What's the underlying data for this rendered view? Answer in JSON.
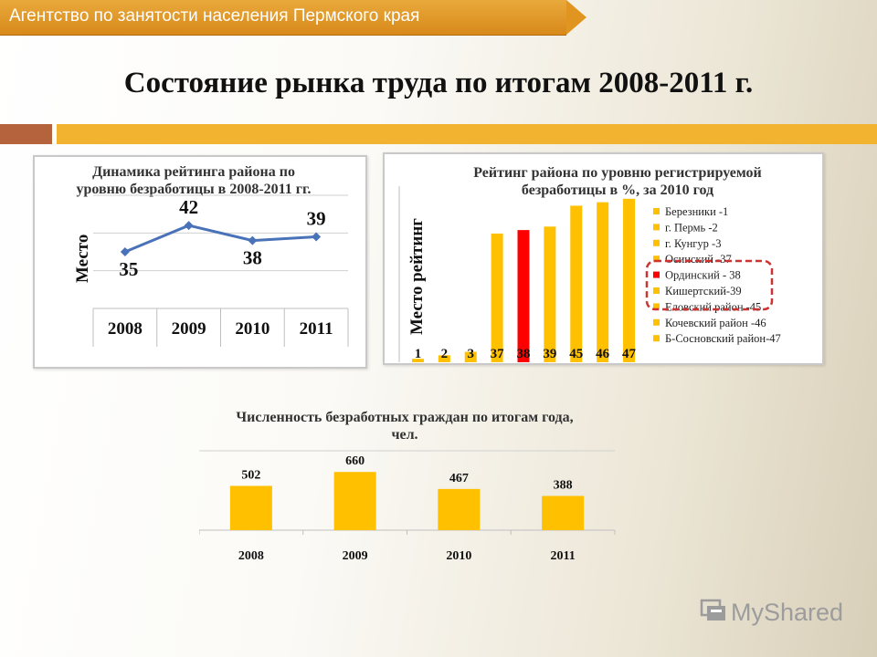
{
  "header": {
    "agency": "Агентство по занятости населения Пермского края"
  },
  "slide": {
    "title": "Состояние рынка труда по итогам 2008-2011 г."
  },
  "watermark": {
    "text": "MyShared"
  },
  "colors": {
    "accent": "#f2b330",
    "brown": "#b5633c",
    "bar": "#ffc000",
    "highlight": "#ff0000",
    "line": "#4a72b8",
    "ring": "#cc3333"
  },
  "chart_data": [
    {
      "type": "line",
      "title": "Динамика рейтинга района по уровню безработицы в 2008-2011 гг.",
      "ylabel": "Место",
      "categories": [
        "2008",
        "2009",
        "2010",
        "2011"
      ],
      "values": [
        35,
        42,
        38,
        39
      ],
      "ylim": [
        20,
        50
      ],
      "grid": true
    },
    {
      "type": "bar",
      "title": "Рейтинг района по уровню регистрируемой безработицы в %, за 2010 год",
      "ylabel": "Место рейтинг",
      "categories": [
        "1",
        "2",
        "3",
        "37",
        "38",
        "39",
        "45",
        "46",
        "47"
      ],
      "values": [
        1,
        2,
        3,
        37,
        38,
        39,
        45,
        46,
        47
      ],
      "highlight_index": 4,
      "legend": [
        "Березники -1",
        "г. Пермь -2",
        "г. Кунгур -3",
        "Осинский -37",
        "Ординский - 38",
        "Кишертский-39",
        "Еловский район -45",
        "Кочевский район -46",
        "Б-Сосновский район-47"
      ],
      "legend_placement": "right",
      "annotation": "dashed red box around Осинский, Ординский, Кишертский"
    },
    {
      "type": "bar",
      "title": "Численность безработных граждан по итогам года, чел.",
      "categories": [
        "2008",
        "2009",
        "2010",
        "2011"
      ],
      "values": [
        502,
        660,
        467,
        388
      ],
      "ylim": [
        0,
        900
      ]
    }
  ]
}
